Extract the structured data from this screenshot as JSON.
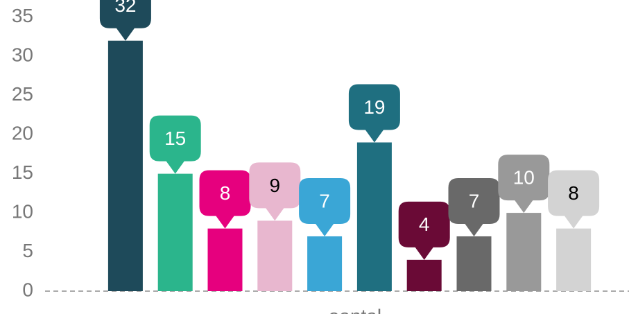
{
  "chart_data": {
    "type": "bar",
    "xlabel": "aantal",
    "values": [
      32,
      15,
      8,
      9,
      7,
      19,
      4,
      7,
      10,
      8
    ],
    "colors": [
      "#1e4a5a",
      "#2bb58c",
      "#e6007e",
      "#e8b7cf",
      "#3aa6d6",
      "#1f6f80",
      "#6a0a36",
      "#696969",
      "#999999",
      "#d3d3d3"
    ],
    "label_colors": [
      "#ffffff",
      "#ffffff",
      "#ffffff",
      "#000000",
      "#ffffff",
      "#ffffff",
      "#ffffff",
      "#ffffff",
      "#ffffff",
      "#000000"
    ],
    "ylim": [
      0,
      37.2
    ],
    "yticks": [
      0,
      5,
      10,
      15,
      20,
      25,
      30,
      35
    ]
  }
}
